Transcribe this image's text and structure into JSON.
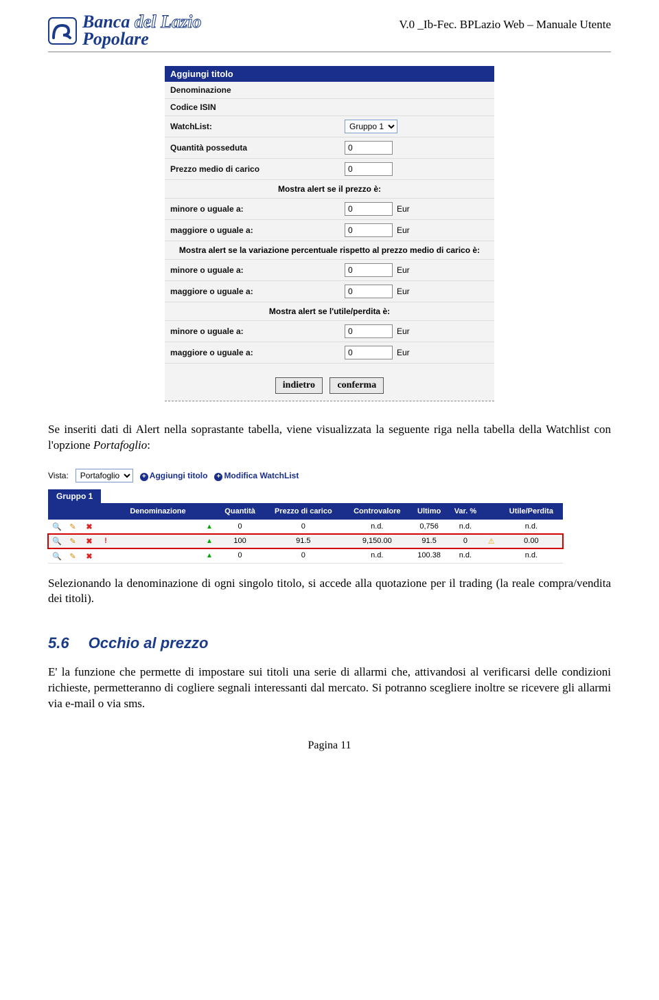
{
  "header": {
    "logo_line1_a": "Banca",
    "logo_line1_b": "del Lazio",
    "logo_line2": "Popolare",
    "doc_title": "V.0 _Ib-Fec. BPLazio Web – Manuale Utente"
  },
  "form": {
    "title": "Aggiungi titolo",
    "rows": {
      "denom": "Denominazione",
      "isin": "Codice ISIN",
      "watchlist_lbl": "WatchList:",
      "watchlist_sel": "Gruppo 1",
      "qty_lbl": "Quantità posseduta",
      "qty_val": "0",
      "pmc_lbl": "Prezzo medio di carico",
      "pmc_val": "0",
      "sec1": "Mostra alert se il prezzo è:",
      "sec2": "Mostra alert se la variazione percentuale rispetto al prezzo medio di carico è:",
      "sec3": "Mostra alert se l'utile/perdita è:",
      "le_lbl": "minore o uguale a:",
      "ge_lbl": "maggiore o uguale a:",
      "unit": "Eur",
      "zero": "0"
    },
    "buttons": {
      "back": "indietro",
      "confirm": "conferma"
    }
  },
  "para1": "Se inseriti dati di Alert nella soprastante tabella, viene visualizzata la seguente riga nella tabella della Watchlist con l'opzione ",
  "para1_em": "Portafoglio",
  "vista": {
    "label": "Vista:",
    "select": "Portafoglio",
    "link_add": "Aggiungi titolo",
    "link_mod": "Modifica WatchList",
    "tab": "Gruppo 1",
    "cols": [
      "",
      "",
      "",
      "",
      "Denominazione",
      "",
      "Quantità",
      "Prezzo di carico",
      "Controvalore",
      "Ultimo",
      "Var. %",
      "",
      "Utile/Perdita"
    ],
    "rows": [
      {
        "alt": false,
        "hl": false,
        "bang": false,
        "qty": "0",
        "pc": "0",
        "cv": "n.d.",
        "ult": "0,756",
        "var": "n.d.",
        "warn": false,
        "up": "n.d."
      },
      {
        "alt": true,
        "hl": true,
        "bang": true,
        "qty": "100",
        "pc": "91.5",
        "cv": "9,150.00",
        "ult": "91.5",
        "var": "0",
        "warn": true,
        "up": "0.00"
      },
      {
        "alt": false,
        "hl": false,
        "bang": false,
        "qty": "0",
        "pc": "0",
        "cv": "n.d.",
        "ult": "100.38",
        "var": "n.d.",
        "warn": false,
        "up": "n.d."
      }
    ]
  },
  "para2": "Selezionando la denominazione di ogni singolo titolo, si accede alla quotazione per il trading (la reale compra/vendita dei titoli).",
  "heading": {
    "num": "5.6",
    "text": "Occhio al prezzo"
  },
  "para3": "E' la funzione che permette di impostare sui titoli una serie di allarmi che, attivandosi al verificarsi delle condizioni richieste, permetteranno di cogliere segnali interessanti dal mercato. Si potranno scegliere inoltre se ricevere gli allarmi via e-mail o via sms.",
  "footer": "Pagina 11",
  "colors": {
    "brand": "#1a3a8a",
    "navy": "#1a2e8c",
    "lightgrey": "#f3f3f3",
    "red": "#d40000"
  }
}
